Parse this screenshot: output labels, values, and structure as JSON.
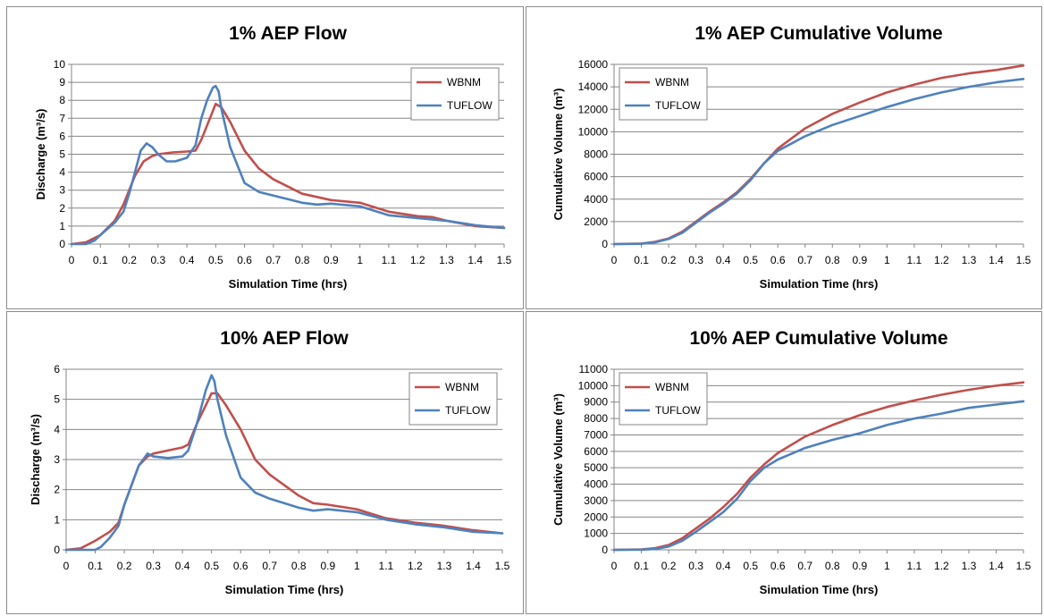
{
  "colors": {
    "WBNM": "#c0504d",
    "TUFLOW": "#4f81bd",
    "grid": "#868686"
  },
  "chart_data": [
    {
      "type": "line",
      "title": "1% AEP Flow",
      "xlabel": "Simulation Time (hrs)",
      "ylabel": "Discharge (m³/s)",
      "xlim": [
        0,
        1.5
      ],
      "ylim": [
        0,
        10
      ],
      "xticks": [
        "0",
        "0.1",
        "0.2",
        "0.3",
        "0.4",
        "0.5",
        "0.6",
        "0.7",
        "0.8",
        "0.9",
        "1",
        "1.1",
        "1.2",
        "1.3",
        "1.4",
        "1.5"
      ],
      "yticks": [
        "0",
        "1",
        "2",
        "3",
        "4",
        "5",
        "6",
        "7",
        "8",
        "9",
        "10"
      ],
      "grid": true,
      "legend_position": "top-right",
      "series": [
        {
          "name": "WBNM",
          "x": [
            0,
            0.05,
            0.1,
            0.15,
            0.18,
            0.2,
            0.22,
            0.25,
            0.28,
            0.3,
            0.35,
            0.4,
            0.43,
            0.45,
            0.48,
            0.5,
            0.52,
            0.55,
            0.6,
            0.65,
            0.7,
            0.8,
            0.9,
            1.0,
            1.1,
            1.2,
            1.25,
            1.3,
            1.4,
            1.5
          ],
          "y": [
            0,
            0.1,
            0.5,
            1.3,
            2.2,
            3.0,
            3.8,
            4.6,
            4.9,
            5.0,
            5.1,
            5.15,
            5.2,
            5.8,
            7.0,
            7.8,
            7.6,
            6.8,
            5.2,
            4.2,
            3.6,
            2.8,
            2.45,
            2.3,
            1.8,
            1.55,
            1.5,
            1.3,
            1.0,
            0.9
          ]
        },
        {
          "name": "TUFLOW",
          "x": [
            0,
            0.05,
            0.08,
            0.1,
            0.15,
            0.18,
            0.2,
            0.22,
            0.24,
            0.26,
            0.28,
            0.3,
            0.33,
            0.36,
            0.4,
            0.43,
            0.45,
            0.47,
            0.49,
            0.5,
            0.51,
            0.52,
            0.55,
            0.6,
            0.65,
            0.7,
            0.8,
            0.85,
            0.9,
            1.0,
            1.1,
            1.2,
            1.3,
            1.4,
            1.5
          ],
          "y": [
            0,
            0,
            0.2,
            0.5,
            1.2,
            1.8,
            2.8,
            4.0,
            5.2,
            5.6,
            5.4,
            5.0,
            4.6,
            4.6,
            4.8,
            5.5,
            7.0,
            8.0,
            8.7,
            8.8,
            8.5,
            7.5,
            5.4,
            3.4,
            2.9,
            2.7,
            2.3,
            2.2,
            2.25,
            2.1,
            1.6,
            1.45,
            1.3,
            1.05,
            0.9
          ]
        }
      ]
    },
    {
      "type": "line",
      "title": "1% AEP Cumulative Volume",
      "xlabel": "Simulation Time (hrs)",
      "ylabel": "Cumulative Volume (m³)",
      "xlim": [
        0,
        1.5
      ],
      "ylim": [
        0,
        16000
      ],
      "xticks": [
        "0",
        "0.1",
        "0.2",
        "0.3",
        "0.4",
        "0.5",
        "0.6",
        "0.7",
        "0.8",
        "0.9",
        "1",
        "1.1",
        "1.2",
        "1.3",
        "1.4",
        "1.5"
      ],
      "yticks": [
        "0",
        "2000",
        "4000",
        "6000",
        "8000",
        "10000",
        "12000",
        "14000",
        "16000"
      ],
      "grid": true,
      "legend_position": "top-left",
      "series": [
        {
          "name": "WBNM",
          "x": [
            0,
            0.1,
            0.15,
            0.2,
            0.25,
            0.3,
            0.35,
            0.4,
            0.45,
            0.5,
            0.55,
            0.6,
            0.7,
            0.8,
            0.9,
            1.0,
            1.1,
            1.2,
            1.3,
            1.4,
            1.5
          ],
          "y": [
            0,
            50,
            200,
            500,
            1100,
            2000,
            2900,
            3700,
            4600,
            5800,
            7200,
            8500,
            10300,
            11600,
            12600,
            13500,
            14200,
            14800,
            15200,
            15500,
            15900
          ]
        },
        {
          "name": "TUFLOW",
          "x": [
            0,
            0.1,
            0.15,
            0.2,
            0.25,
            0.3,
            0.35,
            0.4,
            0.45,
            0.5,
            0.55,
            0.6,
            0.7,
            0.8,
            0.9,
            1.0,
            1.1,
            1.2,
            1.3,
            1.4,
            1.5
          ],
          "y": [
            0,
            20,
            150,
            450,
            1000,
            1900,
            2800,
            3600,
            4500,
            5700,
            7200,
            8300,
            9600,
            10600,
            11400,
            12200,
            12900,
            13500,
            14000,
            14400,
            14700
          ]
        }
      ]
    },
    {
      "type": "line",
      "title": "10% AEP Flow",
      "xlabel": "Simulation Time (hrs)",
      "ylabel": "Discharge (m³/s)",
      "xlim": [
        0,
        1.5
      ],
      "ylim": [
        0,
        6
      ],
      "xticks": [
        "0",
        "0.1",
        "0.2",
        "0.3",
        "0.4",
        "0.5",
        "0.6",
        "0.7",
        "0.8",
        "0.9",
        "1",
        "1.1",
        "1.2",
        "1.3",
        "1.4",
        "1.5"
      ],
      "yticks": [
        "0",
        "1",
        "2",
        "3",
        "4",
        "5",
        "6"
      ],
      "grid": true,
      "legend_position": "top-right",
      "series": [
        {
          "name": "WBNM",
          "x": [
            0,
            0.05,
            0.1,
            0.15,
            0.18,
            0.2,
            0.25,
            0.28,
            0.3,
            0.35,
            0.4,
            0.42,
            0.45,
            0.48,
            0.5,
            0.52,
            0.55,
            0.6,
            0.65,
            0.7,
            0.8,
            0.85,
            0.9,
            1.0,
            1.1,
            1.2,
            1.3,
            1.4,
            1.5
          ],
          "y": [
            0,
            0.05,
            0.3,
            0.6,
            0.9,
            1.5,
            2.8,
            3.1,
            3.2,
            3.3,
            3.4,
            3.5,
            4.2,
            4.8,
            5.2,
            5.2,
            4.8,
            4.0,
            3.0,
            2.5,
            1.8,
            1.55,
            1.5,
            1.35,
            1.05,
            0.9,
            0.8,
            0.65,
            0.55
          ]
        },
        {
          "name": "TUFLOW",
          "x": [
            0,
            0.1,
            0.12,
            0.15,
            0.18,
            0.2,
            0.25,
            0.28,
            0.3,
            0.35,
            0.4,
            0.42,
            0.45,
            0.48,
            0.5,
            0.51,
            0.52,
            0.55,
            0.6,
            0.65,
            0.7,
            0.8,
            0.85,
            0.9,
            1.0,
            1.1,
            1.2,
            1.3,
            1.4,
            1.5
          ],
          "y": [
            0,
            0,
            0.1,
            0.4,
            0.8,
            1.5,
            2.8,
            3.2,
            3.1,
            3.05,
            3.1,
            3.3,
            4.2,
            5.3,
            5.8,
            5.6,
            5.0,
            3.8,
            2.4,
            1.9,
            1.7,
            1.4,
            1.3,
            1.35,
            1.25,
            1.0,
            0.85,
            0.75,
            0.6,
            0.55
          ]
        }
      ]
    },
    {
      "type": "line",
      "title": "10% AEP Cumulative Volume",
      "xlabel": "Simulation Time (hrs)",
      "ylabel": "Cumulative Volume (m³)",
      "xlim": [
        0,
        1.5
      ],
      "ylim": [
        0,
        11000
      ],
      "xticks": [
        "0",
        "0.1",
        "0.2",
        "0.3",
        "0.4",
        "0.5",
        "0.6",
        "0.7",
        "0.8",
        "0.9",
        "1",
        "1.1",
        "1.2",
        "1.3",
        "1.4",
        "1.5"
      ],
      "yticks": [
        "0",
        "1000",
        "2000",
        "3000",
        "4000",
        "5000",
        "6000",
        "7000",
        "8000",
        "9000",
        "10000",
        "11000"
      ],
      "grid": true,
      "legend_position": "top-left",
      "series": [
        {
          "name": "WBNM",
          "x": [
            0,
            0.1,
            0.15,
            0.2,
            0.25,
            0.3,
            0.35,
            0.4,
            0.45,
            0.5,
            0.55,
            0.6,
            0.7,
            0.8,
            0.9,
            1.0,
            1.1,
            1.2,
            1.3,
            1.4,
            1.5
          ],
          "y": [
            0,
            20,
            100,
            300,
            700,
            1300,
            1900,
            2600,
            3400,
            4400,
            5200,
            5900,
            6900,
            7600,
            8200,
            8700,
            9100,
            9450,
            9750,
            10000,
            10200
          ]
        },
        {
          "name": "TUFLOW",
          "x": [
            0,
            0.1,
            0.15,
            0.2,
            0.25,
            0.3,
            0.35,
            0.4,
            0.45,
            0.5,
            0.55,
            0.6,
            0.7,
            0.8,
            0.9,
            1.0,
            1.1,
            1.2,
            1.3,
            1.4,
            1.5
          ],
          "y": [
            0,
            10,
            50,
            200,
            550,
            1100,
            1700,
            2300,
            3100,
            4200,
            5000,
            5500,
            6200,
            6700,
            7100,
            7600,
            8000,
            8300,
            8650,
            8850,
            9050
          ]
        }
      ]
    }
  ]
}
